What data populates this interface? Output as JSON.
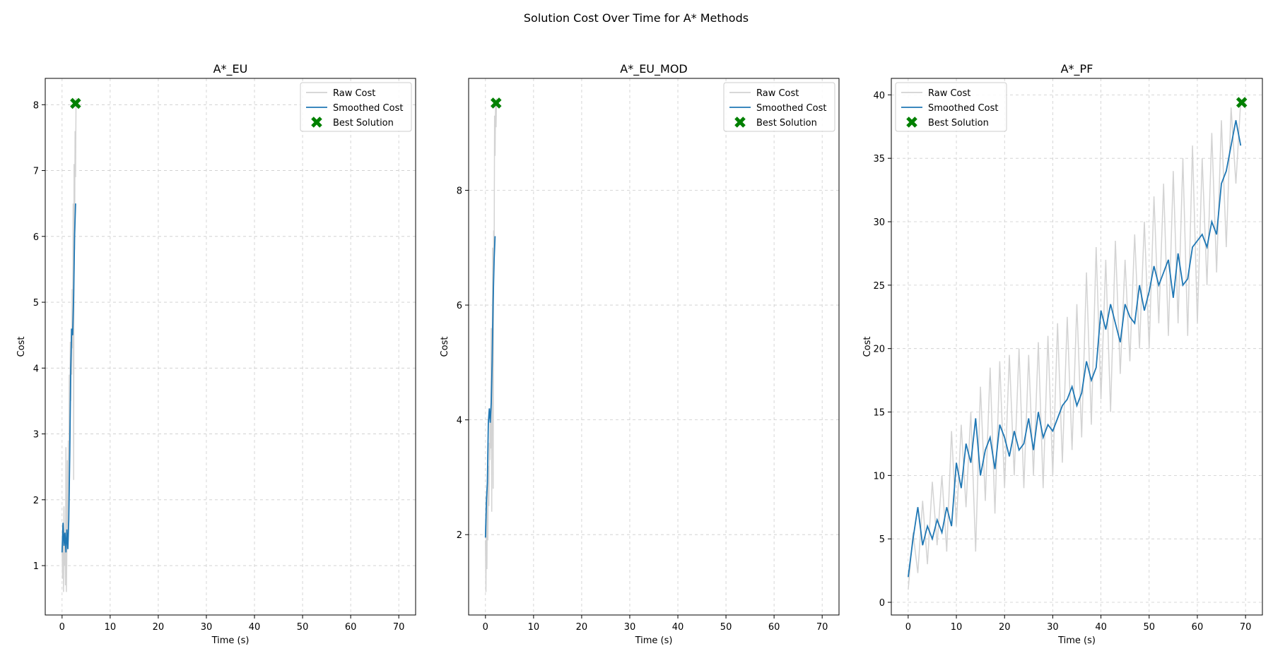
{
  "figure": {
    "title": "Solution Cost Over Time for A* Methods"
  },
  "legend": {
    "raw": "Raw Cost",
    "smoothed": "Smoothed Cost",
    "best": "Best Solution"
  },
  "colors": {
    "raw": "#d3d3d3",
    "smoothed": "#1f77b4",
    "best": "#008000",
    "grid": "#cccccc"
  },
  "chart_data": [
    {
      "type": "line",
      "title": "A*_EU",
      "xlabel": "Time (s)",
      "ylabel": "Cost",
      "xlim": [
        -3.5,
        73.5
      ],
      "ylim": [
        0.25,
        8.4
      ],
      "xticks": [
        0,
        10,
        20,
        30,
        40,
        50,
        60,
        70
      ],
      "yticks": [
        1,
        2,
        3,
        4,
        5,
        6,
        7,
        8
      ],
      "grid": true,
      "legend_position": "upper right",
      "raw": {
        "x": [
          0.0,
          0.1,
          0.2,
          0.3,
          0.4,
          0.5,
          0.6,
          0.7,
          0.8,
          0.9,
          1.0,
          1.1,
          1.2,
          1.3,
          1.4,
          1.5,
          1.6,
          1.7,
          1.8,
          1.9,
          2.0,
          2.1,
          2.2,
          2.3,
          2.4,
          2.5,
          2.6,
          2.7,
          2.8,
          2.9,
          3.0
        ],
        "values": [
          1.3,
          0.8,
          1.6,
          0.6,
          1.9,
          1.0,
          1.4,
          0.7,
          2.8,
          0.6,
          1.2,
          2.6,
          1.5,
          2.9,
          2.0,
          3.9,
          2.8,
          4.4,
          3.5,
          4.6,
          3.9,
          5.2,
          4.3,
          6.5,
          2.3,
          7.1,
          5.8,
          7.6,
          6.9,
          8.1,
          8.0
        ]
      },
      "smoothed": {
        "x": [
          0.0,
          0.2,
          0.4,
          0.6,
          0.8,
          1.0,
          1.2,
          1.4,
          1.6,
          1.8,
          2.0,
          2.2,
          2.4,
          2.6,
          2.8
        ],
        "values": [
          1.2,
          1.65,
          1.3,
          1.5,
          1.2,
          1.55,
          1.25,
          1.7,
          2.7,
          4.0,
          4.6,
          4.5,
          5.1,
          6.0,
          6.5
        ]
      },
      "best": {
        "x": 2.8,
        "y": 8.02
      }
    },
    {
      "type": "line",
      "title": "A*_EU_MOD",
      "xlabel": "Time (s)",
      "ylabel": "Cost",
      "xlim": [
        -3.5,
        73.5
      ],
      "ylim": [
        0.6,
        9.95
      ],
      "xticks": [
        0,
        10,
        20,
        30,
        40,
        50,
        60,
        70
      ],
      "yticks": [
        2,
        4,
        6,
        8
      ],
      "grid": true,
      "legend_position": "upper right",
      "raw": {
        "x": [
          0.0,
          0.1,
          0.2,
          0.3,
          0.4,
          0.5,
          0.6,
          0.7,
          0.8,
          0.9,
          1.0,
          1.1,
          1.2,
          1.3,
          1.4,
          1.5,
          1.6,
          1.7,
          1.8,
          1.9,
          2.0,
          2.1,
          2.2,
          2.3
        ],
        "values": [
          1.9,
          1.0,
          2.4,
          1.4,
          2.8,
          1.9,
          3.2,
          2.5,
          3.6,
          3.3,
          4.2,
          3.5,
          5.6,
          2.4,
          4.8,
          7.0,
          2.8,
          7.3,
          6.8,
          9.3,
          8.6,
          9.5,
          9.1,
          9.6
        ]
      },
      "smoothed": {
        "x": [
          0.0,
          0.2,
          0.4,
          0.6,
          0.8,
          1.0,
          1.2,
          1.4,
          1.6,
          1.8,
          2.0
        ],
        "values": [
          1.95,
          2.6,
          2.9,
          3.95,
          4.2,
          3.95,
          4.3,
          5.0,
          6.1,
          6.8,
          7.2
        ]
      },
      "best": {
        "x": 2.2,
        "y": 9.52
      }
    },
    {
      "type": "line",
      "title": "A*_PF",
      "xlabel": "Time (s)",
      "ylabel": "Cost",
      "xlim": [
        -3.5,
        73.5
      ],
      "ylim": [
        -1.0,
        41.3
      ],
      "xticks": [
        0,
        10,
        20,
        30,
        40,
        50,
        60,
        70
      ],
      "yticks": [
        0,
        5,
        10,
        15,
        20,
        25,
        30,
        35,
        40
      ],
      "grid": true,
      "legend_position": "upper left",
      "raw": {
        "x": [
          0,
          1,
          2,
          3,
          4,
          5,
          6,
          7,
          8,
          9,
          10,
          11,
          12,
          13,
          14,
          15,
          16,
          17,
          18,
          19,
          20,
          21,
          22,
          23,
          24,
          25,
          26,
          27,
          28,
          29,
          30,
          31,
          32,
          33,
          34,
          35,
          36,
          37,
          38,
          39,
          40,
          41,
          42,
          43,
          44,
          45,
          46,
          47,
          48,
          49,
          50,
          51,
          52,
          53,
          54,
          55,
          56,
          57,
          58,
          59,
          60,
          61,
          62,
          63,
          64,
          65,
          66,
          67,
          68,
          69
        ],
        "values": [
          1.0,
          5.5,
          2.3,
          8.0,
          3.0,
          9.5,
          4.5,
          10.0,
          4.0,
          13.5,
          6.0,
          14.0,
          7.5,
          15.0,
          4.0,
          17.0,
          8.0,
          18.5,
          7.0,
          19.0,
          9.0,
          19.5,
          10.0,
          20.0,
          9.0,
          19.5,
          10.0,
          20.5,
          9.0,
          21.0,
          10.0,
          22.0,
          11.0,
          22.5,
          12.0,
          23.5,
          13.0,
          26.0,
          14.0,
          28.0,
          16.0,
          27.0,
          15.0,
          28.5,
          18.0,
          27.0,
          19.0,
          29.0,
          20.0,
          30.0,
          20.0,
          32.0,
          22.0,
          33.0,
          21.0,
          34.0,
          22.0,
          35.0,
          21.0,
          36.0,
          22.0,
          35.0,
          25.0,
          37.0,
          26.0,
          38.0,
          28.0,
          39.0,
          33.0,
          39.5
        ]
      },
      "smoothed": {
        "x": [
          0,
          1,
          2,
          3,
          4,
          5,
          6,
          7,
          8,
          9,
          10,
          11,
          12,
          13,
          14,
          15,
          16,
          17,
          18,
          19,
          20,
          21,
          22,
          23,
          24,
          25,
          26,
          27,
          28,
          29,
          30,
          31,
          32,
          33,
          34,
          35,
          36,
          37,
          38,
          39,
          40,
          41,
          42,
          43,
          44,
          45,
          46,
          47,
          48,
          49,
          50,
          51,
          52,
          53,
          54,
          55,
          56,
          57,
          58,
          59,
          60,
          61,
          62,
          63,
          64,
          65,
          66,
          67,
          68,
          69
        ],
        "values": [
          2.0,
          5.0,
          7.5,
          4.5,
          6.0,
          5.0,
          6.5,
          5.5,
          7.5,
          6.0,
          11.0,
          9.0,
          12.5,
          11.0,
          14.5,
          10.0,
          12.0,
          13.0,
          10.5,
          14.0,
          13.0,
          11.5,
          13.5,
          12.0,
          12.5,
          14.5,
          12.0,
          15.0,
          13.0,
          14.0,
          13.5,
          14.5,
          15.5,
          16.0,
          17.0,
          15.5,
          16.5,
          19.0,
          17.5,
          18.5,
          23.0,
          21.5,
          23.5,
          22.0,
          20.5,
          23.5,
          22.5,
          22.0,
          25.0,
          23.0,
          24.5,
          26.5,
          25.0,
          26.0,
          27.0,
          24.0,
          27.5,
          25.0,
          25.5,
          28.0,
          28.5,
          29.0,
          28.0,
          30.0,
          29.0,
          33.0,
          34.0,
          36.0,
          38.0,
          36.0
        ]
      },
      "best": {
        "x": 69.2,
        "y": 39.4
      }
    }
  ]
}
